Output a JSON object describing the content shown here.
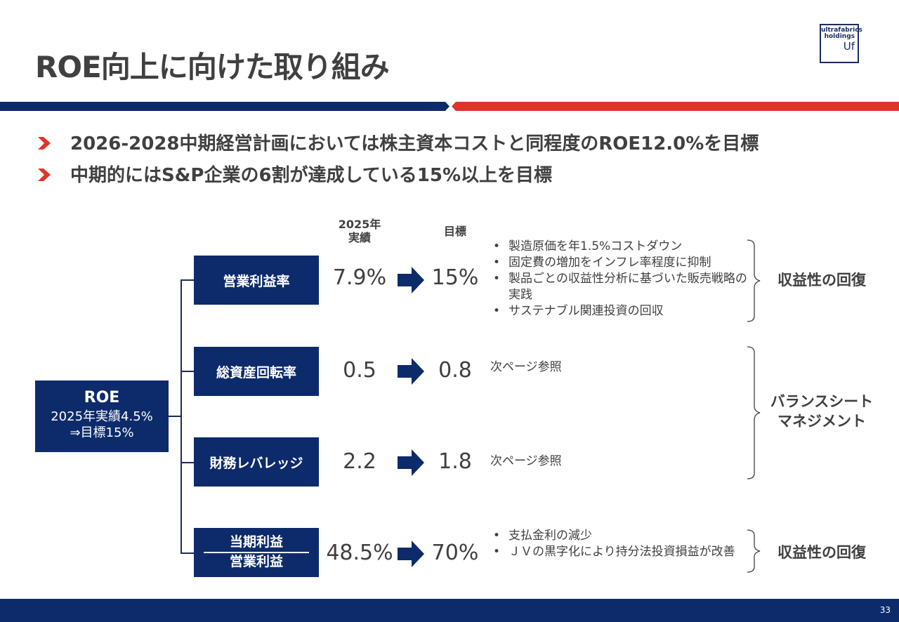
{
  "title": "ROE向上に向けた取り組み",
  "logo": {
    "line1": "ultrafabrics",
    "line2": "holdings",
    "line3": "Uf"
  },
  "bullets": [
    "2026-2028中期経営計画においては株主資本コストと同程度のROE12.0%を目標",
    "中期的にはS&P企業の6割が達成している15%以上を目標"
  ],
  "columns": {
    "actual": "2025年\n実績",
    "target": "目標"
  },
  "roe": {
    "title": "ROE",
    "line1": "2025年実績4.5%",
    "line2": "⇒目標15%"
  },
  "metrics": [
    {
      "label": "営業利益率",
      "actual": "7.9%",
      "target": "15%"
    },
    {
      "label": "総資産回転率",
      "actual": "0.5",
      "target": "0.8"
    },
    {
      "label": "財務レバレッジ",
      "actual": "2.2",
      "target": "1.8"
    },
    {
      "label_num": "当期利益",
      "label_den": "営業利益",
      "actual": "48.5%",
      "target": "70%"
    }
  ],
  "descriptions": {
    "opm": [
      "製造原価を年1.5%コストダウン",
      "固定費の増加をインフレ率程度に抑制",
      "製品ごとの収益性分析に基づいた販売戦略の実践",
      "サステナブル関連投資の回収"
    ],
    "turnover": "次ページ参照",
    "leverage": "次ページ参照",
    "profit": [
      "支払金利の減少",
      "ＪＶの黒字化により持分法投資損益が改善"
    ]
  },
  "results": {
    "top": "収益性の回復",
    "middle": "バランスシート\nマネジメント",
    "bottom": "収益性の回復"
  },
  "colors": {
    "navy": "#0d2b6b",
    "red": "#e0342a",
    "text": "#404040"
  },
  "page_number": "33"
}
